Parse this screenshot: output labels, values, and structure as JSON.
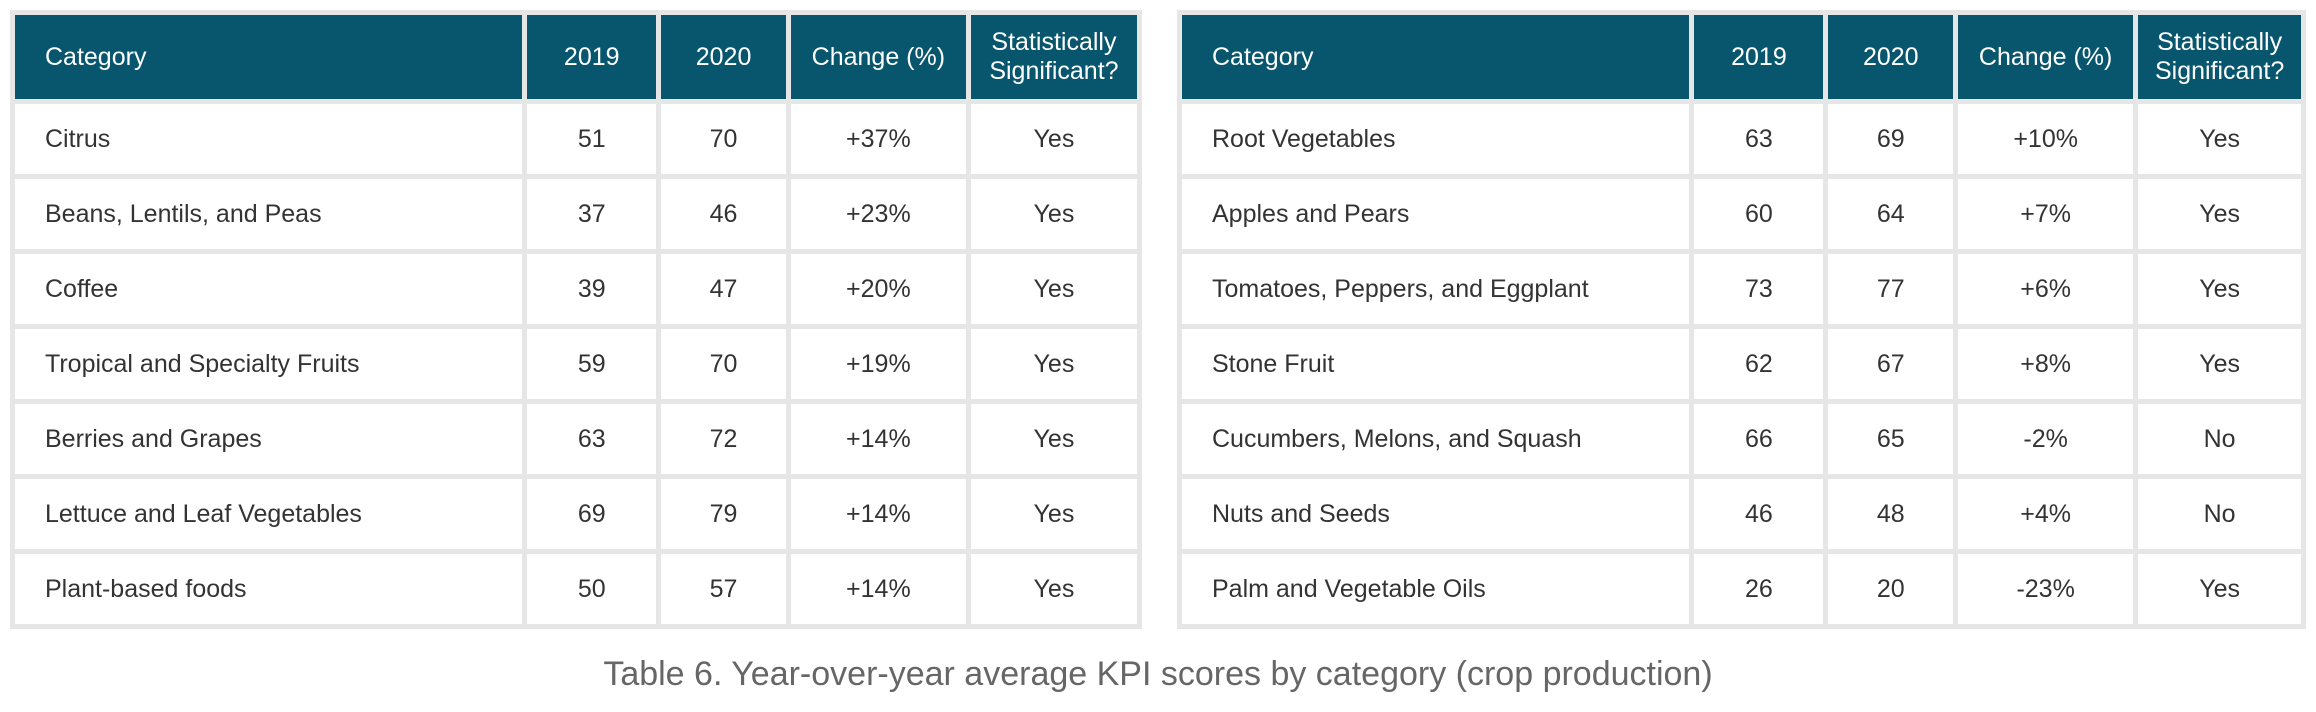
{
  "headers": {
    "category": "Category",
    "y2019": "2019",
    "y2020": "2020",
    "change": "Change (%)",
    "significant": "Statistically Significant?"
  },
  "left_rows": [
    {
      "category": "Citrus",
      "y2019": "51",
      "y2020": "70",
      "change": "+37%",
      "significant": "Yes"
    },
    {
      "category": "Beans, Lentils, and Peas",
      "y2019": "37",
      "y2020": "46",
      "change": "+23%",
      "significant": "Yes"
    },
    {
      "category": "Coffee",
      "y2019": "39",
      "y2020": "47",
      "change": "+20%",
      "significant": "Yes"
    },
    {
      "category": "Tropical and Specialty Fruits",
      "y2019": "59",
      "y2020": "70",
      "change": "+19%",
      "significant": "Yes"
    },
    {
      "category": "Berries and Grapes",
      "y2019": "63",
      "y2020": "72",
      "change": "+14%",
      "significant": "Yes"
    },
    {
      "category": "Lettuce and Leaf Vegetables",
      "y2019": "69",
      "y2020": "79",
      "change": "+14%",
      "significant": "Yes"
    },
    {
      "category": "Plant-based foods",
      "y2019": "50",
      "y2020": "57",
      "change": "+14%",
      "significant": "Yes"
    }
  ],
  "right_rows": [
    {
      "category": "Root Vegetables",
      "y2019": "63",
      "y2020": "69",
      "change": "+10%",
      "significant": "Yes"
    },
    {
      "category": "Apples and Pears",
      "y2019": "60",
      "y2020": "64",
      "change": "+7%",
      "significant": "Yes"
    },
    {
      "category": "Tomatoes, Peppers, and Eggplant",
      "y2019": "73",
      "y2020": "77",
      "change": "+6%",
      "significant": "Yes"
    },
    {
      "category": "Stone Fruit",
      "y2019": "62",
      "y2020": "67",
      "change": "+8%",
      "significant": "Yes"
    },
    {
      "category": "Cucumbers, Melons, and Squash",
      "y2019": "66",
      "y2020": "65",
      "change": "-2%",
      "significant": "No"
    },
    {
      "category": "Nuts and Seeds",
      "y2019": "46",
      "y2020": "48",
      "change": "+4%",
      "significant": "No"
    },
    {
      "category": "Palm and Vegetable Oils",
      "y2019": "26",
      "y2020": "20",
      "change": "-23%",
      "significant": "Yes"
    }
  ],
  "caption": "Table 6. Year-over-year average KPI scores by category (crop production)",
  "colors": {
    "header_bg": "#08566e",
    "header_text": "#ffffff",
    "grid": "#e6e6e6"
  }
}
